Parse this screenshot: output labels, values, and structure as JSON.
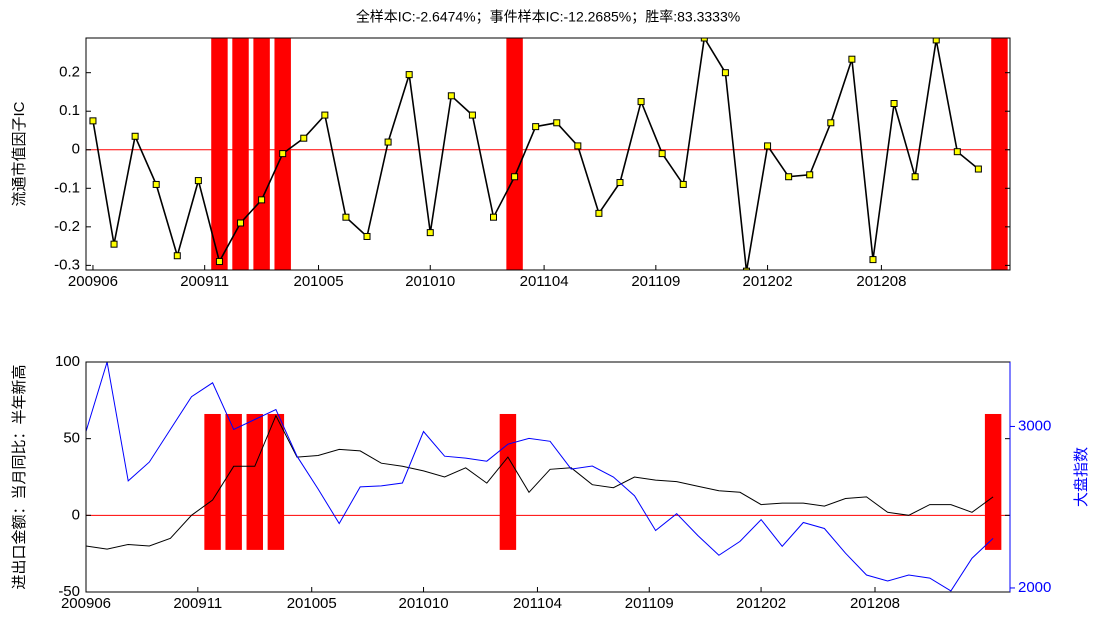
{
  "chart_data": [
    {
      "type": "line",
      "title": "全样本IC:-2.6474%；事件样本IC:-12.2685%；胜率:83.3333%",
      "ylabel": "流通市值因子IC",
      "xlim": [
        -0.33,
        43.5
      ],
      "xticks": [
        {
          "value": 0,
          "label": "200906"
        },
        {
          "value": 5.3,
          "label": "200911"
        },
        {
          "value": 10.7,
          "label": "201005"
        },
        {
          "value": 16,
          "label": "201010"
        },
        {
          "value": 21.4,
          "label": "201104"
        },
        {
          "value": 26.7,
          "label": "201109"
        },
        {
          "value": 32,
          "label": "201202"
        },
        {
          "value": 37.4,
          "label": "201208"
        }
      ],
      "ylim": [
        -0.312,
        0.29
      ],
      "yticks": [
        0.2,
        0.1,
        0,
        -0.1,
        -0.2,
        -0.3
      ],
      "events": [
        6,
        7,
        8,
        9,
        20,
        43
      ],
      "event_color": "#ff0000",
      "series": [
        {
          "color": "#000000",
          "marker_color": "#ffff00",
          "values": [
            0.075,
            -0.245,
            0.035,
            -0.09,
            -0.275,
            -0.08,
            -0.29,
            -0.19,
            -0.13,
            -0.01,
            0.03,
            0.09,
            -0.175,
            -0.225,
            0.02,
            0.195,
            -0.215,
            0.14,
            0.09,
            -0.175,
            -0.07,
            0.06,
            0.07,
            0.01,
            -0.165,
            -0.085,
            0.125,
            -0.01,
            -0.09,
            0.29,
            0.2,
            -0.315,
            0.01,
            -0.07,
            -0.065,
            0.07,
            0.235,
            -0.285,
            0.12,
            -0.07,
            0.285,
            -0.005,
            -0.05
          ]
        }
      ]
    },
    {
      "type": "line",
      "ylabel": "进出口金额：当月同比：半年新高",
      "y2label": "大盘指数",
      "y2color": "#0000ff",
      "xlim": [
        0,
        43.8
      ],
      "xticks": [
        {
          "value": 0,
          "label": "200906"
        },
        {
          "value": 5.3,
          "label": "200911"
        },
        {
          "value": 10.7,
          "label": "201005"
        },
        {
          "value": 16,
          "label": "201010"
        },
        {
          "value": 21.4,
          "label": "201104"
        },
        {
          "value": 26.7,
          "label": "201109"
        },
        {
          "value": 32,
          "label": "201202"
        },
        {
          "value": 37.4,
          "label": "201208"
        }
      ],
      "ylim": [
        -50,
        100
      ],
      "yticks": [
        100,
        50,
        0,
        -50
      ],
      "y2lim": [
        1975,
        3399
      ],
      "y2ticks": [
        3000,
        2000
      ],
      "events": [
        6,
        7,
        8,
        9,
        20,
        43
      ],
      "event_color": "#ff0000",
      "series": [
        {
          "color": "#000000",
          "values": [
            -20,
            -22,
            -19,
            -20,
            -15,
            0,
            10,
            32,
            32,
            65,
            38,
            39,
            43,
            42,
            34,
            32,
            29,
            25,
            31,
            21,
            38,
            15,
            30,
            31,
            20,
            18,
            25,
            23,
            22,
            19,
            16,
            15,
            7,
            8,
            8,
            6,
            11,
            12,
            2,
            0,
            7,
            7,
            2,
            12
          ]
        },
        {
          "color": "#0000ff",
          "axis": "y2",
          "values": [
            2969,
            3399,
            2663,
            2779,
            2982,
            3184,
            3270,
            2982,
            3043,
            3104,
            2816,
            2613,
            2399,
            2626,
            2632,
            2650,
            2969,
            2816,
            2804,
            2785,
            2890,
            2926,
            2908,
            2736,
            2755,
            2687,
            2571,
            2356,
            2460,
            2325,
            2202,
            2288,
            2423,
            2258,
            2405,
            2368,
            2215,
            2080,
            2043,
            2080,
            2061,
            1982,
            2184,
            2307
          ]
        }
      ]
    }
  ]
}
